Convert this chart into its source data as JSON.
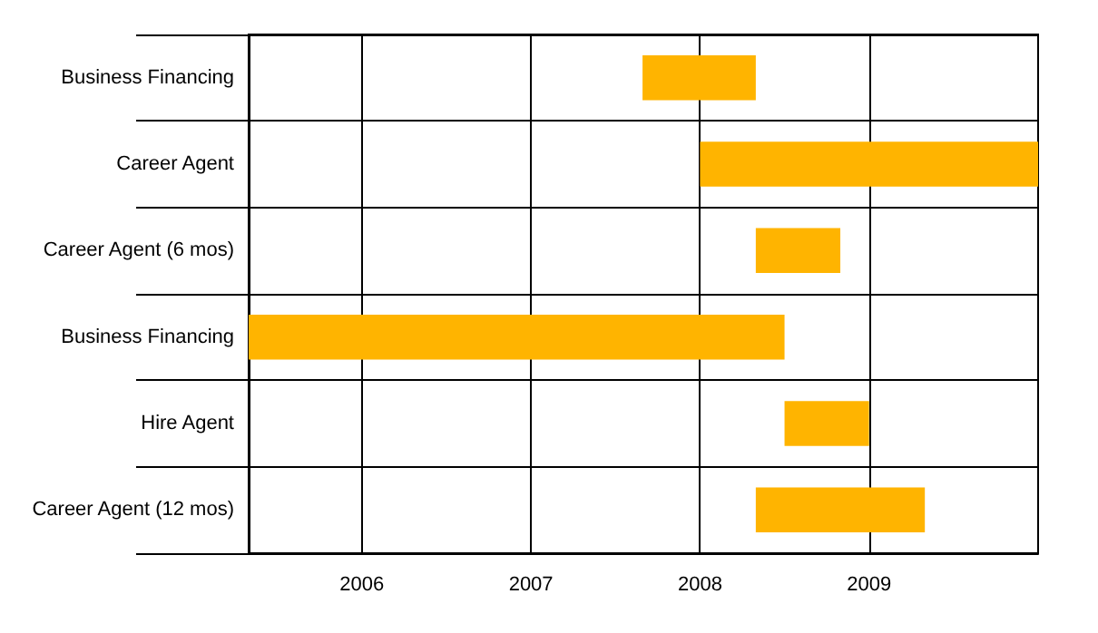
{
  "chart_data": {
    "type": "bar",
    "orientation": "horizontal",
    "categories": [
      "Business Financing",
      "Career Agent",
      "Career Agent (6 mos)",
      "Business Financing",
      "Hire Agent",
      "Career Agent (12 mos)"
    ],
    "base": [
      2007.66,
      2008.0,
      2008.33,
      2005.33,
      2008.5,
      2008.33
    ],
    "values": [
      0.67,
      2.0,
      0.5,
      3.17,
      0.5,
      1.0
    ],
    "color": "#ffb400",
    "xlim": [
      2005.33,
      2010
    ],
    "xticks": [
      2006,
      2007,
      2008,
      2009
    ],
    "grid": true
  }
}
